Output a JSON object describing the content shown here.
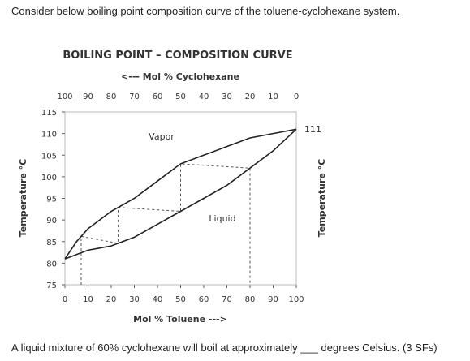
{
  "question": {
    "intro": "Consider below boiling point composition curve of the toluene-cyclohexane system.",
    "ask": "A liquid mixture of 60% cyclohexane will boil at approximately ___ degrees Celsius. (3 SFs)"
  },
  "chart_data": {
    "type": "line",
    "title": "BOILING POINT – COMPOSITION CURVE",
    "top_axis_label": "<--- Mol % Cyclohexane",
    "xlabel": "Mol % Toluene --->",
    "ylabel_left": "Temperature °C",
    "ylabel_right": "Temperature °C",
    "x_ticks": [
      "0",
      "10",
      "20",
      "30",
      "40",
      "50",
      "60",
      "70",
      "80",
      "90",
      "100"
    ],
    "top_ticks": [
      "100",
      "90",
      "80",
      "70",
      "60",
      "50",
      "40",
      "30",
      "20",
      "10",
      "0"
    ],
    "y_ticks": [
      "115",
      "110",
      "105",
      "100",
      "95",
      "90",
      "85",
      "80",
      "75"
    ],
    "xlim": [
      0,
      100
    ],
    "ylim": [
      75,
      115
    ],
    "right_annotation": "111",
    "series": [
      {
        "name": "Vapor",
        "x": [
          0,
          5,
          10,
          20,
          30,
          40,
          50,
          60,
          70,
          80,
          90,
          100
        ],
        "y": [
          81,
          85,
          88,
          92,
          95,
          99,
          103,
          105,
          107,
          109,
          110,
          111
        ]
      },
      {
        "name": "Liquid",
        "x": [
          0,
          10,
          20,
          30,
          40,
          50,
          60,
          70,
          80,
          90,
          100
        ],
        "y": [
          81,
          83,
          84,
          86,
          89,
          92,
          95,
          98,
          102,
          106,
          111
        ]
      }
    ],
    "guide_x": [
      7,
      23,
      50,
      80
    ]
  }
}
